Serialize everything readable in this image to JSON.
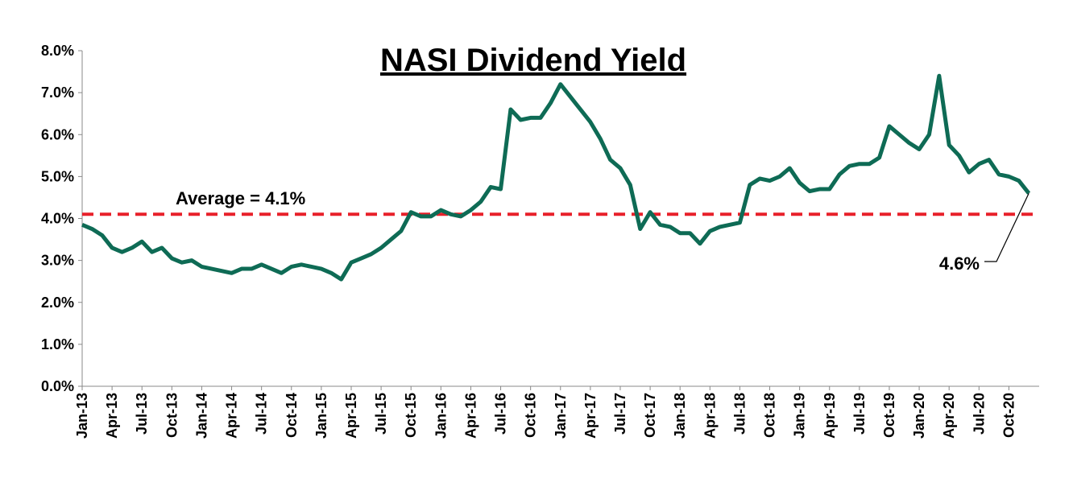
{
  "chart_data": {
    "type": "line",
    "title": "NASI Dividend Yield",
    "x": [
      "Jan-13",
      "Feb-13",
      "Mar-13",
      "Apr-13",
      "May-13",
      "Jun-13",
      "Jul-13",
      "Aug-13",
      "Sep-13",
      "Oct-13",
      "Nov-13",
      "Dec-13",
      "Jan-14",
      "Feb-14",
      "Mar-14",
      "Apr-14",
      "May-14",
      "Jun-14",
      "Jul-14",
      "Aug-14",
      "Sep-14",
      "Oct-14",
      "Nov-14",
      "Dec-14",
      "Jan-15",
      "Feb-15",
      "Mar-15",
      "Apr-15",
      "May-15",
      "Jun-15",
      "Jul-15",
      "Aug-15",
      "Sep-15",
      "Oct-15",
      "Nov-15",
      "Dec-15",
      "Jan-16",
      "Feb-16",
      "Mar-16",
      "Apr-16",
      "May-16",
      "Jun-16",
      "Jul-16",
      "Aug-16",
      "Sep-16",
      "Oct-16",
      "Nov-16",
      "Dec-16",
      "Jan-17",
      "Feb-17",
      "Mar-17",
      "Apr-17",
      "May-17",
      "Jun-17",
      "Jul-17",
      "Aug-17",
      "Sep-17",
      "Oct-17",
      "Nov-17",
      "Dec-17",
      "Jan-18",
      "Feb-18",
      "Mar-18",
      "Apr-18",
      "May-18",
      "Jun-18",
      "Jul-18",
      "Aug-18",
      "Sep-18",
      "Oct-18",
      "Nov-18",
      "Dec-18",
      "Jan-19",
      "Feb-19",
      "Mar-19",
      "Apr-19",
      "May-19",
      "Jun-19",
      "Jul-19",
      "Aug-19",
      "Sep-19",
      "Oct-19",
      "Nov-19",
      "Dec-19",
      "Jan-20",
      "Feb-20",
      "Mar-20",
      "Apr-20",
      "May-20",
      "Jun-20",
      "Jul-20",
      "Aug-20",
      "Sep-20",
      "Oct-20",
      "Nov-20",
      "Dec-20"
    ],
    "series": [
      {
        "name": "NASI Dividend Yield",
        "color": "#0e6b55",
        "values": [
          3.85,
          3.75,
          3.6,
          3.3,
          3.2,
          3.3,
          3.45,
          3.2,
          3.3,
          3.05,
          2.95,
          3.0,
          2.85,
          2.8,
          2.75,
          2.7,
          2.8,
          2.8,
          2.9,
          2.8,
          2.7,
          2.85,
          2.9,
          2.85,
          2.8,
          2.7,
          2.55,
          2.95,
          3.05,
          3.15,
          3.3,
          3.5,
          3.7,
          4.15,
          4.05,
          4.05,
          4.2,
          4.1,
          4.05,
          4.2,
          4.4,
          4.75,
          4.7,
          6.6,
          6.35,
          6.4,
          6.4,
          6.75,
          7.2,
          6.9,
          6.6,
          6.3,
          5.9,
          5.4,
          5.2,
          4.8,
          3.75,
          4.15,
          3.85,
          3.8,
          3.65,
          3.65,
          3.4,
          3.7,
          3.8,
          3.85,
          3.9,
          4.8,
          4.95,
          4.9,
          5.0,
          5.2,
          4.85,
          4.65,
          4.7,
          4.7,
          5.05,
          5.25,
          5.3,
          5.3,
          5.45,
          6.2,
          6.0,
          5.8,
          5.65,
          6.0,
          7.4,
          5.75,
          5.5,
          5.1,
          5.3,
          5.4,
          5.05,
          5.0,
          4.9,
          4.6
        ]
      }
    ],
    "value_labels": {
      "last": "4.6%"
    },
    "average": {
      "value": 4.1,
      "label": "Average = 4.1%",
      "color": "#e8202a"
    },
    "xticks": [
      "Jan-13",
      "Apr-13",
      "Jul-13",
      "Oct-13",
      "Jan-14",
      "Apr-14",
      "Jul-14",
      "Oct-14",
      "Jan-15",
      "Apr-15",
      "Jul-15",
      "Oct-15",
      "Jan-16",
      "Apr-16",
      "Jul-16",
      "Oct-16",
      "Jan-17",
      "Apr-17",
      "Jul-17",
      "Oct-17",
      "Jan-18",
      "Apr-18",
      "Jul-18",
      "Oct-18",
      "Jan-19",
      "Apr-19",
      "Jul-19",
      "Oct-19",
      "Jan-20",
      "Apr-20",
      "Jul-20",
      "Oct-20"
    ],
    "ylim": [
      0,
      8
    ],
    "yticks": [
      {
        "value": 0,
        "label": "0.0%"
      },
      {
        "value": 1,
        "label": "1.0%"
      },
      {
        "value": 2,
        "label": "2.0%"
      },
      {
        "value": 3,
        "label": "3.0%"
      },
      {
        "value": 4,
        "label": "4.0%"
      },
      {
        "value": 5,
        "label": "5.0%"
      },
      {
        "value": 6,
        "label": "6.0%"
      },
      {
        "value": 7,
        "label": "7.0%"
      },
      {
        "value": 8,
        "label": "8.0%"
      }
    ],
    "grid": false
  }
}
